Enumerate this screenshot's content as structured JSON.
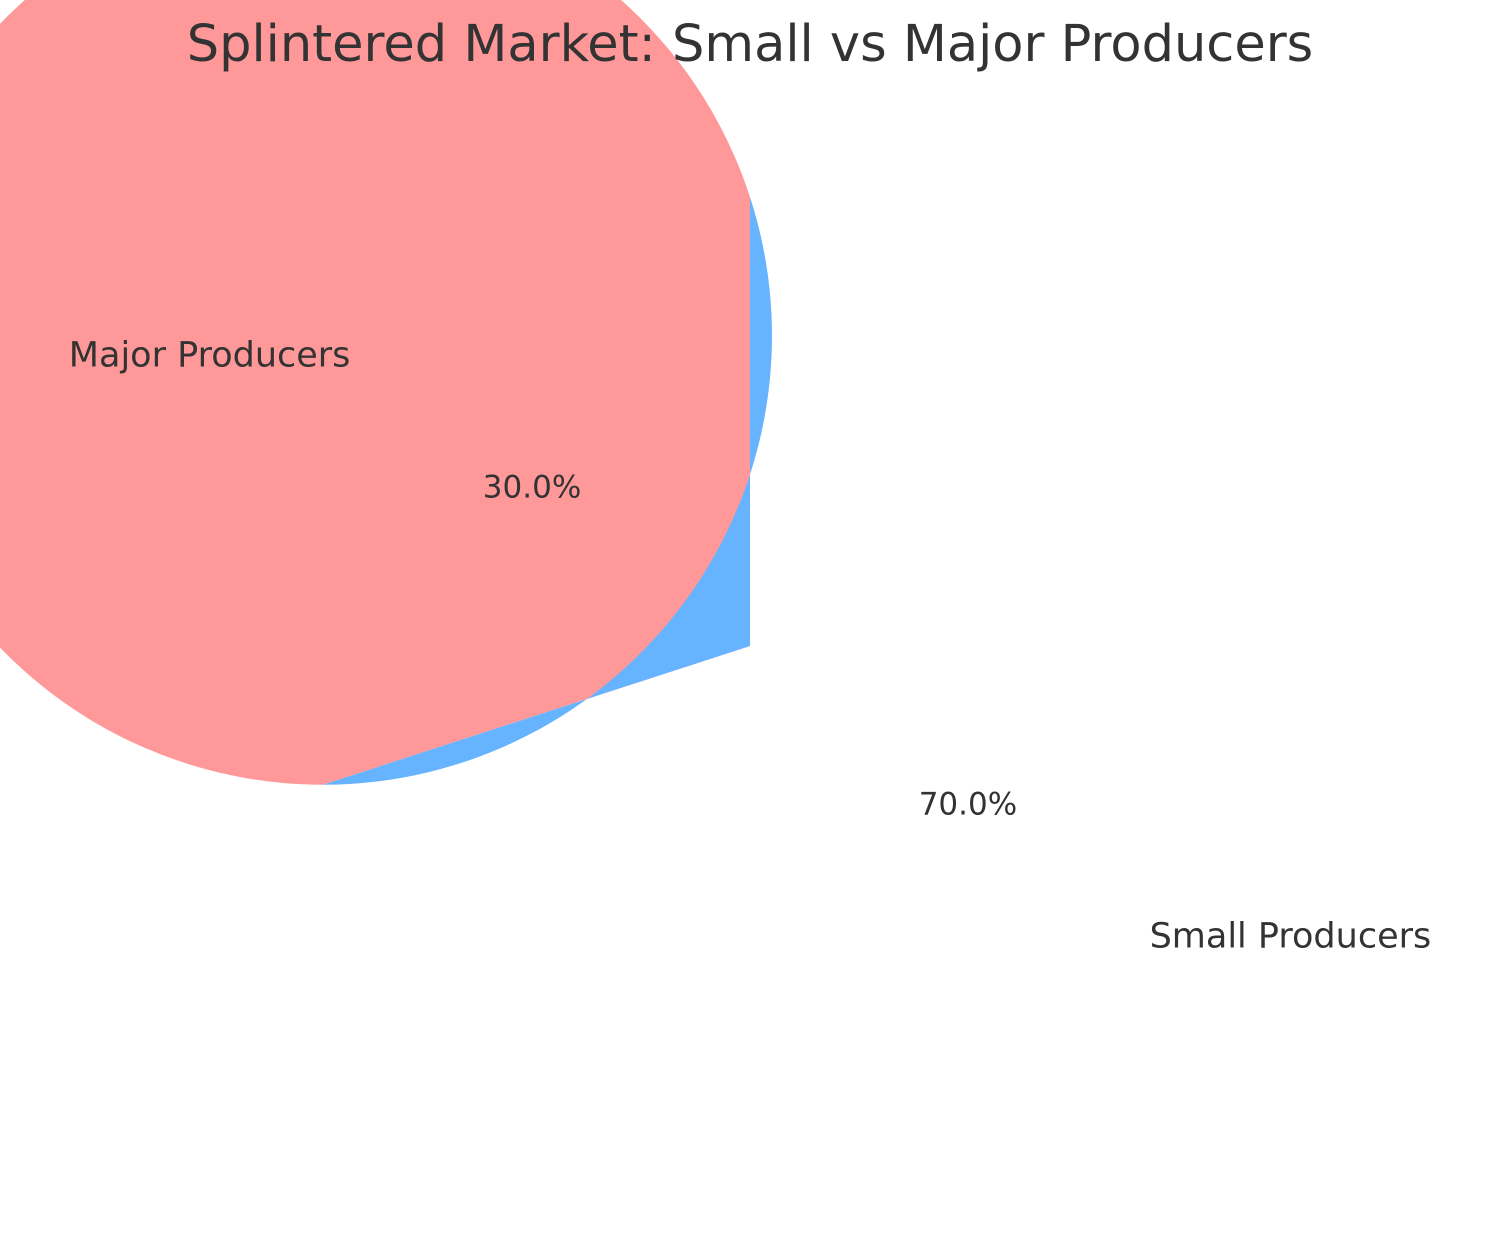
{
  "chart_data": {
    "type": "pie",
    "title": "Splintered Market: Small vs Major Producers",
    "slices": [
      {
        "label": "Small Producers",
        "value": 70.0,
        "pct_label": "70.0%",
        "color": "#ff9999"
      },
      {
        "label": "Major Producers",
        "value": 30.0,
        "pct_label": "30.0%",
        "color": "#66b3ff"
      }
    ],
    "start_angle_deg": 90,
    "direction": "counterclockwise",
    "legend": "none",
    "text_color": "#333333"
  }
}
